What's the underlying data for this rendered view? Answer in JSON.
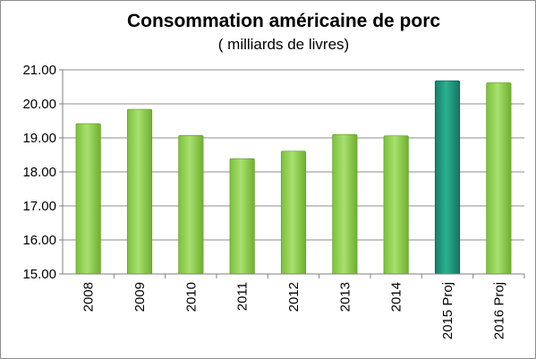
{
  "chart_data": {
    "type": "bar",
    "title": "Consommation américaine de porc",
    "subtitle": "( milliards de livres)",
    "xlabel": "",
    "ylabel": "",
    "categories": [
      "2008",
      "2009",
      "2010",
      "2011",
      "2012",
      "2013",
      "2014",
      "2015 Proj",
      "2016 Proj"
    ],
    "values": [
      19.42,
      19.84,
      19.07,
      18.39,
      18.61,
      19.1,
      19.06,
      20.68,
      20.62
    ],
    "highlighted": [
      "2015 Proj"
    ],
    "ylim": [
      15,
      21
    ],
    "yticks": [
      "15.00",
      "16.00",
      "17.00",
      "18.00",
      "19.00",
      "20.00",
      "21.00"
    ],
    "grid": true,
    "legend": "none",
    "colors": {
      "bar": "#92d050",
      "bar_highlight": "#1f9a7e",
      "grid": "#8c8c8c",
      "axis": "#7f7f7f"
    }
  }
}
